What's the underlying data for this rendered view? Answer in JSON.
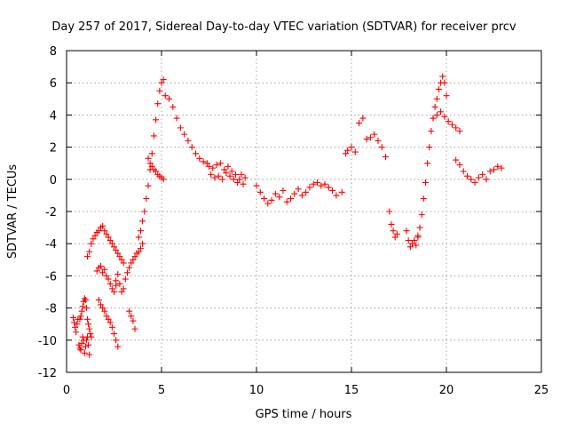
{
  "chart_data": {
    "type": "scatter",
    "title": "Day 257 of 2017, Sidereal Day-to-day VTEC variation (SDTVAR) for receiver prcv",
    "xlabel": "GPS time / hours",
    "ylabel": "SDTVAR / TECUs",
    "xlim": [
      0,
      25
    ],
    "ylim": [
      -12,
      8
    ],
    "xticks": [
      0,
      5,
      10,
      15,
      20,
      25
    ],
    "yticks": [
      -12,
      -10,
      -8,
      -6,
      -4,
      -2,
      0,
      2,
      4,
      6,
      8
    ],
    "grid": true,
    "marker": "+",
    "color": "#ff0000",
    "series": [
      {
        "name": "SDTVAR",
        "x": [
          0.35,
          0.4,
          0.45,
          0.5,
          0.55,
          0.6,
          0.65,
          0.7,
          0.75,
          0.8,
          0.85,
          0.9,
          0.95,
          1.0,
          1.05,
          1.1,
          1.15,
          1.2,
          0.7,
          0.75,
          0.8,
          0.85,
          0.9,
          0.95,
          1.0,
          1.05,
          1.1,
          1.15,
          1.2,
          1.25,
          1.3,
          1.1,
          1.2,
          1.3,
          1.4,
          1.5,
          1.6,
          1.7,
          1.8,
          1.9,
          2.0,
          2.1,
          2.2,
          2.3,
          2.4,
          2.5,
          2.6,
          2.7,
          2.8,
          2.9,
          3.0,
          1.6,
          1.7,
          1.8,
          1.9,
          2.0,
          2.1,
          2.2,
          2.3,
          2.4,
          2.5,
          2.6,
          1.7,
          1.8,
          1.9,
          2.0,
          2.1,
          2.2,
          2.3,
          2.4,
          2.5,
          2.6,
          2.7,
          2.6,
          2.7,
          2.8,
          2.9,
          3.0,
          3.1,
          3.2,
          3.3,
          3.4,
          3.5,
          3.6,
          3.7,
          3.8,
          3.9,
          4.0,
          3.3,
          3.4,
          3.5,
          3.6,
          3.8,
          3.9,
          4.0,
          4.1,
          4.2,
          4.3,
          4.4,
          4.5,
          4.6,
          4.7,
          4.8,
          4.9,
          5.0,
          5.1,
          4.3,
          4.4,
          4.5,
          4.6,
          4.7,
          4.8,
          4.9,
          5.0,
          5.1,
          5.2,
          5.4,
          5.6,
          5.8,
          6.0,
          6.2,
          6.4,
          6.6,
          6.8,
          7.0,
          7.2,
          7.4,
          7.5,
          7.7,
          7.9,
          8.1,
          8.3,
          8.5,
          8.7,
          8.9,
          9.1,
          9.3,
          7.6,
          7.8,
          8.0,
          8.2,
          8.4,
          8.6,
          8.8,
          9.0,
          9.2,
          9.4,
          10.0,
          10.2,
          10.4,
          10.6,
          10.8,
          11.0,
          11.2,
          11.4,
          11.6,
          11.8,
          12.0,
          12.2,
          12.4,
          12.6,
          12.8,
          13.0,
          13.2,
          13.4,
          13.6,
          13.8,
          14.0,
          14.2,
          14.5,
          14.7,
          14.8,
          15.0,
          15.2,
          15.4,
          15.6,
          15.8,
          16.0,
          16.2,
          16.4,
          16.6,
          16.8,
          17.0,
          17.1,
          17.2,
          17.3,
          17.4,
          17.9,
          18.0,
          18.1,
          18.2,
          18.3,
          18.4,
          18.5,
          18.5,
          18.6,
          18.7,
          18.8,
          18.9,
          19.0,
          19.1,
          19.2,
          19.3,
          19.4,
          19.5,
          19.6,
          19.7,
          19.8,
          19.9,
          20.0,
          19.3,
          19.5,
          19.7,
          19.9,
          20.1,
          20.3,
          20.5,
          20.7,
          20.5,
          20.7,
          20.9,
          21.1,
          21.3,
          21.5,
          21.7,
          21.9,
          22.1,
          22.3,
          22.5,
          22.7,
          22.9
        ],
        "y": [
          -8.6,
          -8.9,
          -9.2,
          -9.5,
          -9.0,
          -8.7,
          -10.3,
          -10.5,
          -10.6,
          -10.2,
          -9.8,
          -10.0,
          -10.8,
          -10.4,
          -10.0,
          -9.8,
          -10.3,
          -10.9,
          -8.7,
          -8.5,
          -8.2,
          -7.9,
          -7.6,
          -7.4,
          -7.5,
          -8.0,
          -8.7,
          -9.0,
          -9.3,
          -9.6,
          -9.8,
          -4.8,
          -4.5,
          -4.0,
          -3.7,
          -3.5,
          -3.3,
          -3.2,
          -3.0,
          -2.9,
          -3.2,
          -3.4,
          -3.6,
          -3.8,
          -4.0,
          -4.2,
          -4.4,
          -4.6,
          -4.8,
          -5.0,
          -5.2,
          -5.7,
          -5.5,
          -5.4,
          -5.8,
          -5.6,
          -6.0,
          -6.2,
          -6.5,
          -6.8,
          -7.0,
          -6.6,
          -7.5,
          -7.8,
          -8.0,
          -8.2,
          -8.5,
          -8.7,
          -8.9,
          -9.2,
          -9.6,
          -10.0,
          -10.4,
          -6.3,
          -5.9,
          -6.5,
          -7.0,
          -6.8,
          -6.2,
          -5.8,
          -5.5,
          -5.2,
          -5.0,
          -4.8,
          -4.6,
          -4.5,
          -4.3,
          -4.0,
          -8.2,
          -8.5,
          -8.8,
          -9.3,
          -3.6,
          -3.2,
          -2.6,
          -2.0,
          -1.2,
          -0.4,
          0.6,
          1.6,
          2.7,
          3.7,
          4.7,
          5.5,
          6.0,
          6.2,
          1.3,
          1.0,
          0.8,
          0.6,
          0.5,
          0.3,
          0.2,
          0.1,
          0.0,
          5.2,
          5.0,
          4.5,
          3.8,
          3.2,
          2.8,
          2.4,
          2.0,
          1.6,
          1.3,
          1.1,
          1.0,
          0.8,
          0.7,
          0.9,
          1.0,
          0.6,
          0.8,
          0.5,
          0.3,
          0.0,
          -0.3,
          0.3,
          0.1,
          0.2,
          0.0,
          0.4,
          0.2,
          0.0,
          -0.2,
          0.3,
          0.1,
          -0.4,
          -0.8,
          -1.2,
          -1.5,
          -1.3,
          -0.9,
          -1.1,
          -0.7,
          -1.4,
          -1.2,
          -0.9,
          -0.6,
          -1.0,
          -0.8,
          -0.5,
          -0.3,
          -0.2,
          -0.4,
          -0.3,
          -0.5,
          -0.7,
          -1.0,
          -0.8,
          1.6,
          1.8,
          2.0,
          1.7,
          3.5,
          3.8,
          2.5,
          2.6,
          2.8,
          2.4,
          2.0,
          1.4,
          -2.0,
          -2.8,
          -3.2,
          -3.6,
          -3.4,
          -3.2,
          -3.8,
          -4.2,
          -4.0,
          -3.8,
          -4.1,
          -3.6,
          -3.5,
          -3.0,
          -2.2,
          -1.2,
          -0.2,
          1.0,
          2.0,
          3.0,
          3.8,
          4.5,
          5.0,
          5.6,
          6.0,
          6.4,
          6.0,
          5.2,
          3.8,
          4.0,
          4.2,
          3.9,
          3.6,
          3.4,
          3.2,
          3.0,
          1.2,
          0.9,
          0.5,
          0.2,
          0.0,
          -0.2,
          0.1,
          0.3,
          0.0,
          0.5,
          0.6,
          0.8,
          0.7
        ]
      }
    ]
  }
}
